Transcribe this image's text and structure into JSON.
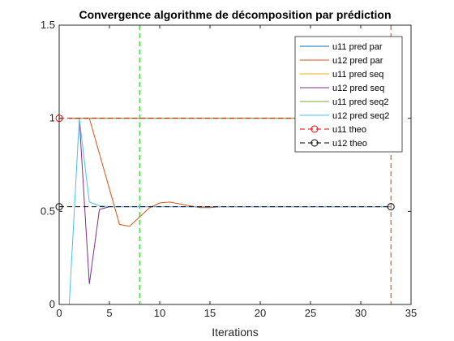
{
  "chart_data": {
    "type": "line",
    "title": "Convergence algorithme de décomposition par prédiction",
    "xlabel": "Iterations",
    "ylabel": "",
    "xlim": [
      0,
      35
    ],
    "ylim": [
      0,
      1.5
    ],
    "xticks": [
      "0",
      "5",
      "10",
      "15",
      "20",
      "25",
      "30",
      "35"
    ],
    "yticks": [
      "0",
      "0.5",
      "1",
      "1.5"
    ],
    "grid": false,
    "legend_position": "top-right",
    "series": [
      {
        "name": "u11 pred par",
        "color": "#0072BD",
        "style": "solid",
        "x": [
          1,
          2,
          3,
          4,
          5,
          6,
          7,
          8,
          9,
          10,
          11,
          12,
          13,
          14,
          15,
          16,
          17,
          18,
          19,
          20,
          21,
          22,
          23,
          24,
          25,
          26,
          27,
          28,
          29,
          30,
          31,
          32,
          33
        ],
        "y": [
          1,
          1,
          1,
          1,
          1,
          1,
          1,
          1,
          1,
          1,
          1,
          1,
          1,
          1,
          1,
          1,
          1,
          1,
          1,
          1,
          1,
          1,
          1,
          1,
          1,
          1,
          1,
          1,
          1,
          1,
          1,
          1,
          1
        ]
      },
      {
        "name": "u12 pred par",
        "color": "#D95319",
        "style": "solid",
        "x": [
          1,
          2,
          3,
          4,
          5,
          6,
          7,
          8,
          9,
          10,
          11,
          12,
          13,
          14,
          15,
          16,
          17,
          18,
          19,
          20,
          21,
          22,
          23,
          24,
          25,
          26,
          27,
          28,
          29,
          30,
          31,
          32,
          33
        ],
        "y": [
          1,
          1,
          1,
          0.81,
          0.62,
          0.43,
          0.42,
          0.47,
          0.52,
          0.545,
          0.55,
          0.54,
          0.53,
          0.52,
          0.52,
          0.525,
          0.525,
          0.525,
          0.525,
          0.525,
          0.525,
          0.525,
          0.525,
          0.525,
          0.525,
          0.525,
          0.525,
          0.525,
          0.525,
          0.525,
          0.525,
          0.525,
          0.525
        ]
      },
      {
        "name": "u11 pred seq",
        "color": "#EDB120",
        "style": "solid",
        "x": [
          1,
          2,
          3,
          4,
          5,
          6,
          7,
          8,
          9,
          10,
          11,
          12,
          13,
          14,
          15,
          16,
          17,
          18,
          19,
          20,
          21,
          22,
          23,
          24,
          25,
          26,
          27,
          28,
          29,
          30,
          31,
          32,
          33
        ],
        "y": [
          1,
          1,
          1,
          1,
          1,
          1,
          1,
          1,
          1,
          1,
          1,
          1,
          1,
          1,
          1,
          1,
          1,
          1,
          1,
          1,
          1,
          1,
          1,
          1,
          1,
          1,
          1,
          1,
          1,
          1,
          1,
          1,
          1
        ]
      },
      {
        "name": "u12 pred seq",
        "color": "#7E2F8E",
        "style": "solid",
        "x": [
          1,
          2,
          3,
          4,
          5,
          6,
          7,
          8,
          9,
          10,
          11,
          12,
          13,
          14,
          15,
          16,
          17,
          18,
          19,
          20,
          21,
          22,
          23,
          24,
          25,
          26,
          27,
          28,
          29,
          30,
          31,
          32,
          33
        ],
        "y": [
          1,
          1,
          0.11,
          0.51,
          0.525,
          0.525,
          0.525,
          0.525,
          0.525,
          0.525,
          0.525,
          0.525,
          0.525,
          0.525,
          0.525,
          0.525,
          0.525,
          0.525,
          0.525,
          0.525,
          0.525,
          0.525,
          0.525,
          0.525,
          0.525,
          0.525,
          0.525,
          0.525,
          0.525,
          0.525,
          0.525,
          0.525,
          0.525
        ]
      },
      {
        "name": "u11 pred seq2",
        "color": "#77AC30",
        "style": "solid",
        "x": [
          1,
          2,
          3,
          4,
          5,
          6,
          7,
          8,
          9,
          10,
          11,
          12,
          13,
          14,
          15,
          16,
          17,
          18,
          19,
          20,
          21,
          22,
          23,
          24,
          25,
          26,
          27,
          28,
          29,
          30,
          31,
          32,
          33
        ],
        "y": [
          1,
          1,
          1,
          1,
          1,
          1,
          1,
          1,
          1,
          1,
          1,
          1,
          1,
          1,
          1,
          1,
          1,
          1,
          1,
          1,
          1,
          1,
          1,
          1,
          1,
          1,
          1,
          1,
          1,
          1,
          1,
          1,
          1
        ]
      },
      {
        "name": "u12 pred seq2",
        "color": "#4DBEEE",
        "style": "solid",
        "x": [
          1,
          2,
          3,
          4,
          5,
          6,
          7,
          8,
          9,
          10,
          11,
          12,
          13,
          14,
          15,
          16,
          17,
          18,
          19,
          20,
          21,
          22,
          23,
          24,
          25,
          26,
          27,
          28,
          29,
          30,
          31,
          32,
          33
        ],
        "y": [
          0,
          1,
          0.55,
          0.53,
          0.525,
          0.525,
          0.525,
          0.525,
          0.525,
          0.525,
          0.525,
          0.525,
          0.525,
          0.525,
          0.525,
          0.525,
          0.525,
          0.525,
          0.525,
          0.525,
          0.525,
          0.525,
          0.525,
          0.525,
          0.525,
          0.525,
          0.525,
          0.525,
          0.525,
          0.525,
          0.525,
          0.525,
          0.525
        ]
      },
      {
        "name": "u11 theo",
        "color": "#FF0000",
        "style": "dashed",
        "marker": "o",
        "x": [
          0,
          33
        ],
        "y": [
          1,
          1
        ]
      },
      {
        "name": "u12 theo",
        "color": "#000000",
        "style": "dashed",
        "marker": "o",
        "x": [
          0,
          33
        ],
        "y": [
          0.525,
          0.525
        ]
      }
    ],
    "vlines": [
      {
        "x": 8,
        "color": "#00CC00"
      },
      {
        "x": 33,
        "color": "#A0522D"
      }
    ]
  }
}
